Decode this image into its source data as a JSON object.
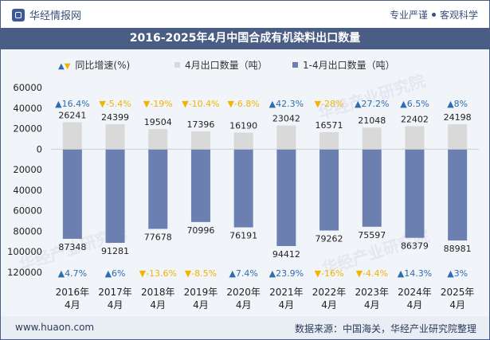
{
  "header": {
    "brand": "华经情报网",
    "tag1": "专业严谨",
    "tag2": "客观科学"
  },
  "title": "2016-2025年4月中国合成有机染料出口数量",
  "legend": {
    "growth": "同比增速(%)",
    "april": "4月出口数量（吨）",
    "cumulative": "1-4月出口数量（吨）"
  },
  "watermark": "华经产业研究院",
  "footer": {
    "url": "www.huaon.com",
    "source": "数据来源：中国海关，华经产业研究院整理"
  },
  "colors": {
    "april_bar": "#d9d9d9",
    "cumulative_bar": "#6b7fb0",
    "growth_up": "#2f6db0",
    "growth_down": "#f2b400"
  },
  "chart_data": {
    "type": "bar",
    "categories": [
      [
        "2016年",
        "4月"
      ],
      [
        "2017年",
        "4月"
      ],
      [
        "2018年",
        "4月"
      ],
      [
        "2019年",
        "4月"
      ],
      [
        "2020年",
        "4月"
      ],
      [
        "2021年",
        "4月"
      ],
      [
        "2022年",
        "4月"
      ],
      [
        "2023年",
        "4月"
      ],
      [
        "2024年",
        "4月"
      ],
      [
        "2025年",
        "4月"
      ]
    ],
    "series": [
      {
        "name": "4月出口数量（吨）",
        "values": [
          26241,
          24399,
          19504,
          17396,
          16190,
          23042,
          16571,
          21048,
          22402,
          24198
        ],
        "growth_labels": [
          "16.4%",
          "-5.4%",
          "-19%",
          "-10.4%",
          "-6.8%",
          "42.3%",
          "-28%",
          "27.2%",
          "6.5%",
          "8%"
        ],
        "growth_up": [
          true,
          false,
          false,
          false,
          false,
          true,
          false,
          true,
          true,
          true
        ]
      },
      {
        "name": "1-4月出口数量（吨）",
        "values": [
          87348,
          91281,
          77678,
          70996,
          76191,
          94412,
          79262,
          75597,
          86379,
          88981
        ],
        "plotted_as": "negative",
        "growth_labels": [
          "4.7%",
          "6%",
          "-13.6%",
          "-8.5%",
          "7.4%",
          "23.9%",
          "-16%",
          "-4.4%",
          "14.3%",
          "3%"
        ],
        "growth_up": [
          true,
          true,
          false,
          false,
          true,
          true,
          false,
          false,
          true,
          true
        ]
      }
    ],
    "ylim": [
      -120000,
      60000
    ],
    "yticks": [
      60000,
      40000,
      20000,
      0,
      -20000,
      -40000,
      -60000,
      -80000,
      -100000,
      -120000
    ],
    "ytick_labels": [
      "60000",
      "40000",
      "20000",
      "0",
      "20000",
      "40000",
      "60000",
      "80000",
      "100000",
      "120000"
    ],
    "grid": false,
    "legend_position": "top"
  }
}
